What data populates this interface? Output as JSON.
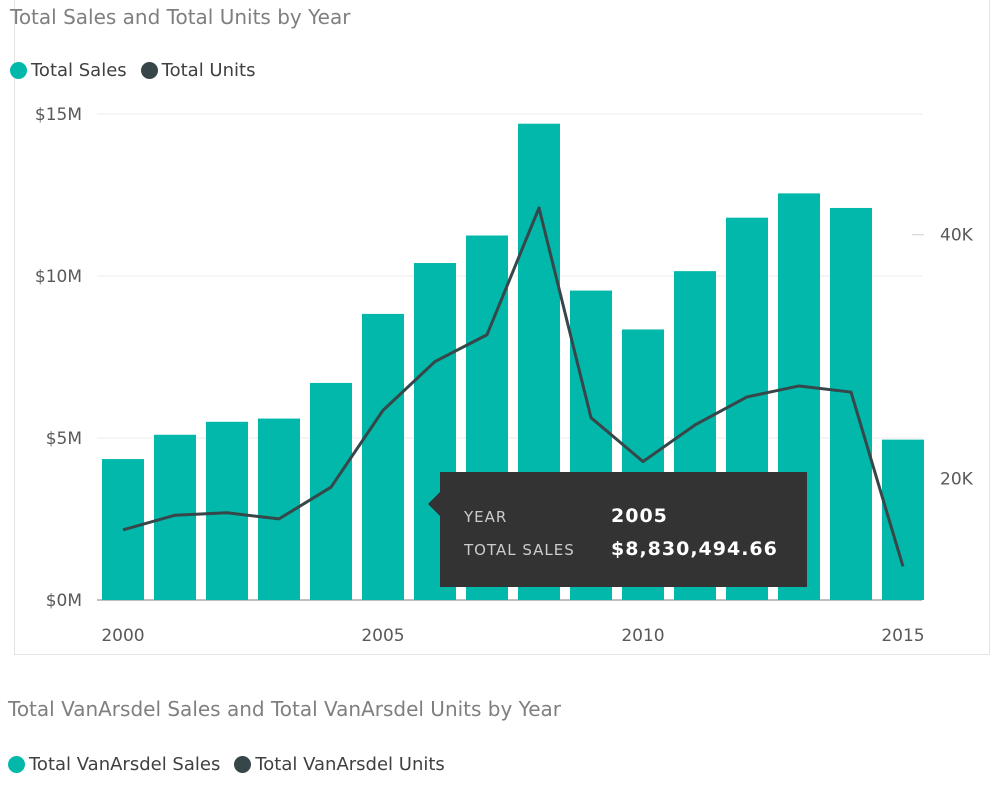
{
  "chart_data": [
    {
      "type": "bar+line",
      "title": "Total Sales and Total Units by Year",
      "legend": [
        {
          "name": "Total Sales",
          "color": "#01b8aa"
        },
        {
          "name": "Total Units",
          "color": "#374649"
        }
      ],
      "categories": [
        2000,
        2001,
        2002,
        2003,
        2004,
        2005,
        2006,
        2007,
        2008,
        2009,
        2010,
        2011,
        2012,
        2013,
        2014,
        2015
      ],
      "x_ticks": [
        "2000",
        "2005",
        "2010",
        "2015"
      ],
      "series": [
        {
          "name": "Total Sales",
          "type": "bar",
          "axis": "left",
          "values": [
            4.35,
            5.1,
            5.5,
            5.6,
            6.7,
            8.83,
            10.4,
            11.25,
            14.7,
            9.55,
            8.35,
            10.15,
            11.8,
            12.55,
            12.1,
            4.95
          ]
        },
        {
          "name": "Total Units",
          "type": "line",
          "axis": "right",
          "values": [
            15800,
            17000,
            17200,
            16700,
            19300,
            25600,
            29600,
            31800,
            42200,
            25000,
            21400,
            24400,
            26700,
            27600,
            27100,
            12800
          ]
        }
      ],
      "y_left": {
        "ticks": [
          "$0M",
          "$5M",
          "$10M",
          "$15M"
        ],
        "min": 0,
        "max": 15,
        "unit": "$M"
      },
      "y_right": {
        "ticks": [
          "20K",
          "40K"
        ],
        "min": 10050,
        "max": 49900
      },
      "tooltip": {
        "year_label": "YEAR",
        "year_value": "2005",
        "sales_label": "TOTAL SALES",
        "sales_value": "$8,830,494.66"
      }
    },
    {
      "type": "bar+line",
      "title": "Total VanArsdel Sales and Total VanArsdel Units by Year",
      "legend": [
        {
          "name": "Total VanArsdel Sales",
          "color": "#01b8aa"
        },
        {
          "name": "Total VanArsdel Units",
          "color": "#374649"
        }
      ]
    }
  ]
}
